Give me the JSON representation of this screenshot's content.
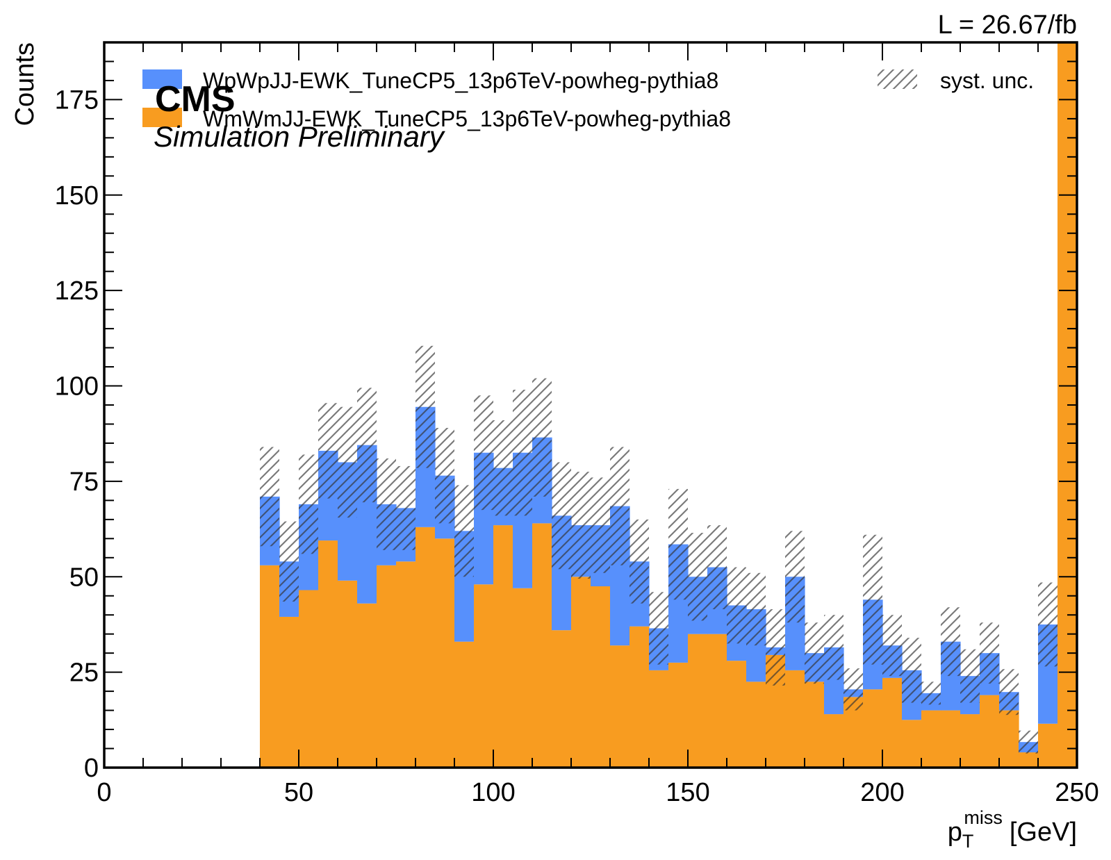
{
  "chart_data": {
    "type": "bar",
    "stacked": true,
    "histogram": true,
    "x_bin_edges": [
      40,
      45,
      50,
      55,
      60,
      65,
      70,
      75,
      80,
      85,
      90,
      95,
      100,
      105,
      110,
      115,
      120,
      125,
      130,
      135,
      140,
      145,
      150,
      155,
      160,
      165,
      170,
      175,
      180,
      185,
      190,
      195,
      200,
      205,
      210,
      215,
      220,
      225,
      230,
      235,
      240,
      245,
      250
    ],
    "series": [
      {
        "name": "WmWmJJ-EWK_TuneCP5_13p6TeV-powheg-pythia8",
        "color": "#f89c20",
        "values": [
          53,
          39.5,
          46.5,
          59.5,
          49,
          43,
          53,
          54,
          63,
          60,
          33,
          48,
          63.5,
          47,
          64,
          36,
          50,
          47.5,
          32,
          37,
          25.5,
          27.5,
          35,
          35,
          28,
          22.5,
          29.5,
          25.5,
          22.5,
          14,
          18.5,
          20.5,
          23.5,
          12.5,
          15,
          15,
          14,
          19,
          15,
          4,
          11.5,
          190
        ]
      },
      {
        "name": "WpWpJJ-EWK_TuneCP5_13p6TeV-powheg-pythia8",
        "color": "#5790fc",
        "values": [
          18,
          14.5,
          22.5,
          23.5,
          31,
          41.5,
          16,
          14,
          31.5,
          16.5,
          29,
          34.5,
          15,
          35.5,
          22.5,
          30,
          13.5,
          16,
          36.5,
          17,
          11,
          31,
          15,
          17.5,
          14.5,
          19,
          2,
          24.5,
          7.5,
          17.5,
          2,
          23.5,
          8.5,
          13,
          4.5,
          18,
          10,
          11,
          4.8,
          2.7,
          26,
          0
        ]
      }
    ],
    "unc_half_width": [
      13,
      10.5,
      13,
      12.5,
      14.5,
      15,
      12,
      11,
      16,
      12.5,
      12,
      15,
      12.5,
      16.5,
      15.5,
      14,
      14,
      12.5,
      15.5,
      11,
      9.5,
      14.5,
      11.5,
      11,
      10,
      9.5,
      10,
      12,
      8,
      8.5,
      5.5,
      17,
      8,
      8.5,
      3,
      9,
      7,
      8,
      6,
      3,
      11,
      0
    ],
    "xlabel_main": "p",
    "xlabel_sub": "T",
    "xlabel_sup": "miss",
    "xlabel_unit": "[GeV]",
    "ylabel": "Counts",
    "xlim": [
      0,
      250
    ],
    "ylim": [
      0,
      190
    ],
    "x_ticks": [
      0,
      50,
      100,
      150,
      200,
      250
    ],
    "y_ticks": [
      0,
      25,
      50,
      75,
      100,
      125,
      150,
      175
    ],
    "grid": false,
    "legend_position": "top",
    "legend_unc_label": "syst. unc.",
    "experiment_label": "CMS",
    "status_label": "Simulation Preliminary",
    "lumi_label": "L = 26.67/fb"
  }
}
